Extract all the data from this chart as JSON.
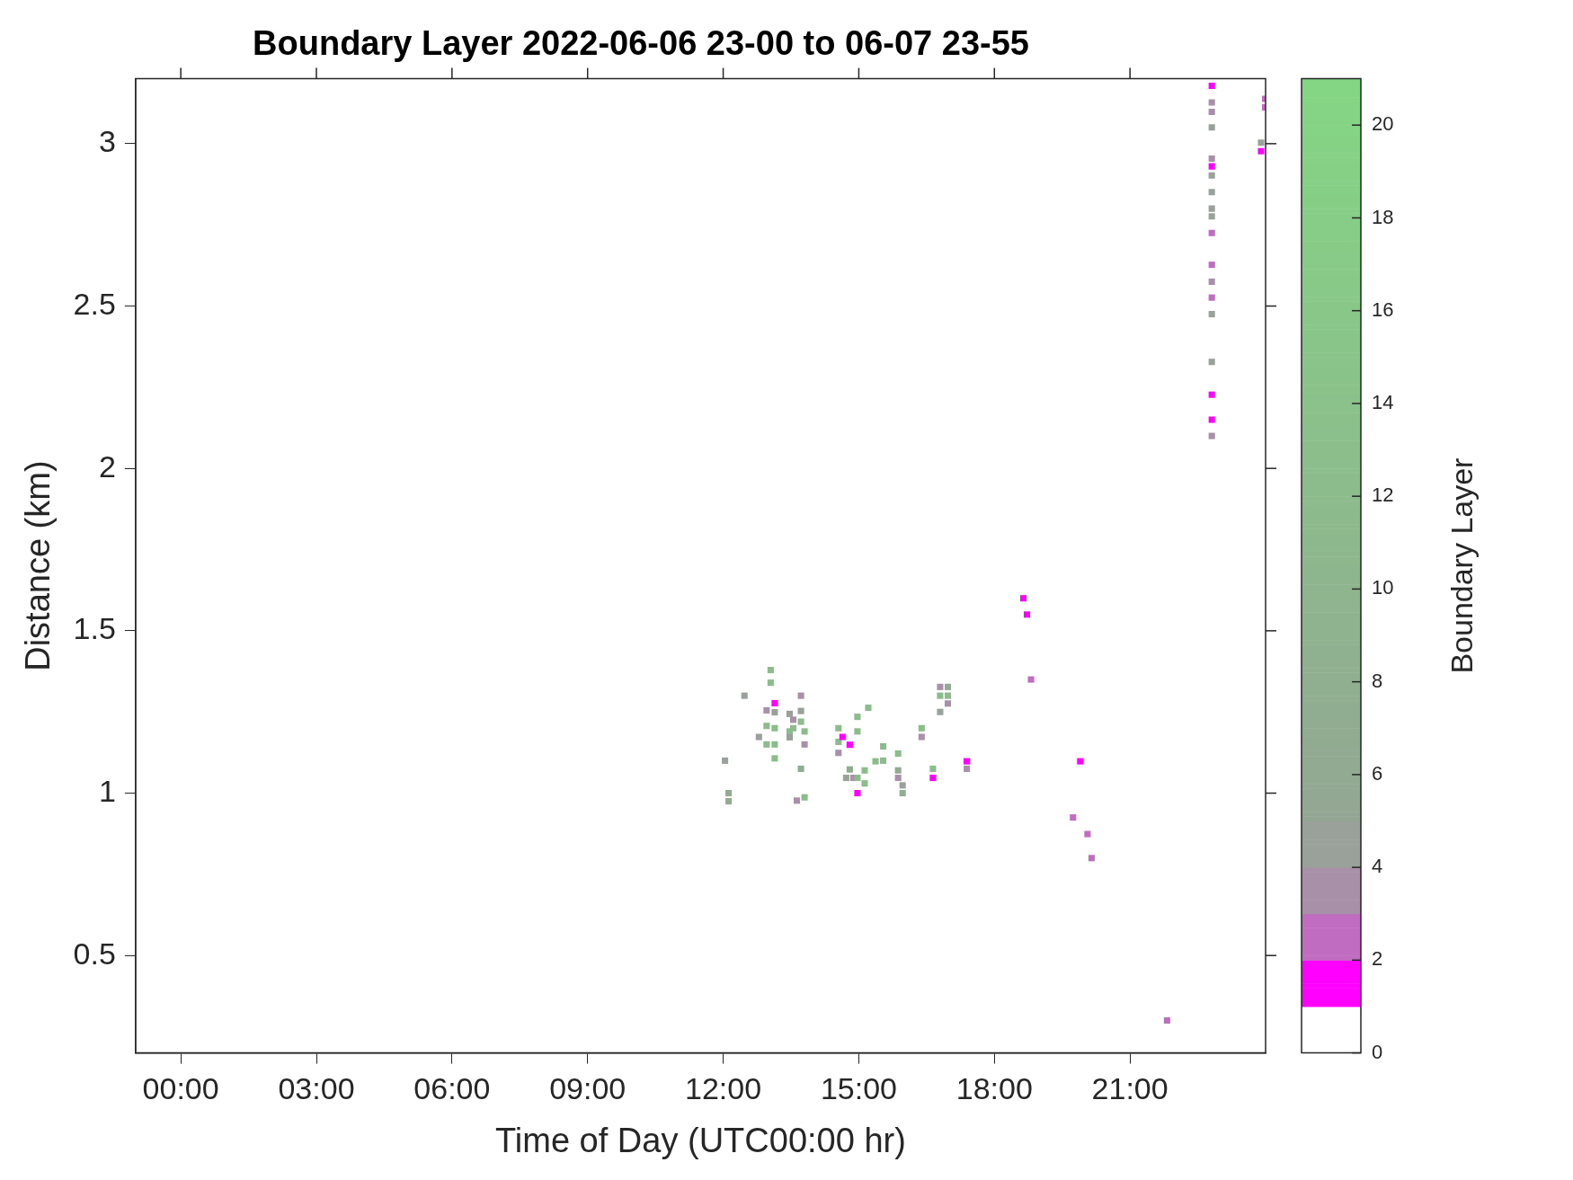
{
  "chart_data": {
    "type": "scatter",
    "title": "Boundary Layer 2022-06-06 23-00 to 06-07 23-55",
    "xlabel": "Time of Day (UTC00:00 hr)",
    "ylabel": "Distance (km)",
    "clabel": "Boundary Layer",
    "x": [
      12.04,
      12.12,
      12.12,
      12.47,
      12.79,
      13.05,
      13.05,
      12.96,
      12.96,
      12.96,
      13.14,
      13.14,
      13.14,
      13.14,
      13.14,
      13.47,
      13.47,
      13.47,
      13.55,
      13.55,
      13.63,
      13.72,
      13.72,
      13.72,
      13.72,
      13.8,
      13.8,
      13.8,
      14.55,
      14.55,
      14.55,
      14.64,
      14.8,
      14.72,
      14.8,
      14.88,
      14.97,
      14.97,
      14.97,
      14.97,
      15.13,
      15.13,
      15.21,
      15.37,
      15.54,
      15.54,
      15.87,
      15.87,
      15.87,
      15.97,
      15.97,
      16.39,
      16.39,
      16.64,
      16.64,
      16.8,
      16.8,
      16.8,
      16.97,
      16.97,
      16.97,
      17.39,
      17.39,
      18.64,
      18.72,
      18.81,
      19.9,
      19.74,
      20.06,
      20.15,
      21.82,
      22.81,
      22.81,
      22.81,
      22.81,
      22.81,
      22.81,
      22.81,
      22.81,
      22.81,
      22.81,
      22.81,
      22.81,
      22.81,
      22.81,
      22.81,
      22.81,
      22.81,
      22.81,
      22.81,
      23.99,
      23.99,
      23.9,
      23.9
    ],
    "values": [
      1.1,
      1.0,
      0.975,
      1.3,
      1.173,
      1.379,
      1.34,
      1.255,
      1.207,
      1.15,
      1.277,
      1.249,
      1.2,
      1.15,
      1.107,
      1.244,
      1.19,
      1.172,
      1.226,
      1.2,
      0.977,
      1.3,
      1.253,
      1.22,
      1.075,
      1.19,
      1.15,
      0.987,
      1.2,
      1.158,
      1.124,
      1.173,
      1.149,
      1.047,
      1.073,
      1.047,
      1.0,
      1.235,
      1.19,
      1.047,
      1.07,
      1.03,
      1.263,
      1.098,
      1.144,
      1.1,
      1.122,
      1.07,
      1.047,
      1.024,
      1.0,
      1.2,
      1.173,
      1.075,
      1.047,
      1.327,
      1.3,
      1.25,
      1.327,
      1.3,
      1.276,
      1.098,
      1.075,
      1.6,
      1.55,
      1.35,
      1.098,
      0.925,
      0.874,
      0.8,
      0.3,
      3.178,
      3.127,
      3.098,
      3.05,
      2.954,
      2.93,
      2.902,
      2.851,
      2.8,
      2.776,
      2.725,
      2.627,
      2.575,
      2.526,
      2.475,
      2.328,
      2.227,
      2.15,
      2.1,
      3.138,
      3.112,
      3.003,
      2.977
    ],
    "cvalues": [
      4.5,
      6,
      6,
      4.5,
      4.5,
      12,
      12,
      3.5,
      12,
      12,
      1.5,
      4.5,
      12,
      12,
      12,
      4.5,
      12,
      4.5,
      3.5,
      12,
      3.5,
      3.5,
      4.5,
      12,
      7,
      12,
      3.5,
      12,
      12,
      12,
      3.5,
      1.5,
      1.5,
      4.5,
      6,
      3.5,
      1.5,
      12,
      12,
      12,
      12,
      12,
      12,
      12,
      12,
      12,
      12,
      6,
      3.5,
      4.5,
      8,
      12,
      3.5,
      12,
      1.5,
      3.5,
      12,
      4.5,
      6,
      12,
      3.5,
      1.5,
      3.5,
      1.5,
      1.5,
      2.5,
      1.5,
      2.5,
      2.5,
      2.5,
      2.5,
      1.5,
      3.5,
      3.5,
      4.5,
      3.5,
      1.5,
      4.5,
      4.5,
      4.5,
      4.5,
      2.5,
      2.5,
      3.5,
      2.5,
      4.5,
      4.5,
      1.5,
      1.5,
      3.5,
      2.5,
      2.5,
      4.5,
      1.5
    ],
    "xlim": [
      -1,
      24
    ],
    "xticks": [
      {
        "value": 0,
        "label": "00:00"
      },
      {
        "value": 3,
        "label": "03:00"
      },
      {
        "value": 6,
        "label": "06:00"
      },
      {
        "value": 9,
        "label": "09:00"
      },
      {
        "value": 12,
        "label": "12:00"
      },
      {
        "value": 15,
        "label": "15:00"
      },
      {
        "value": 18,
        "label": "18:00"
      },
      {
        "value": 21,
        "label": "21:00"
      }
    ],
    "ylim": [
      0.2,
      3.2
    ],
    "yticks": [
      0.5,
      1,
      1.5,
      2,
      2.5,
      3
    ],
    "clim": [
      0,
      21
    ],
    "cticks": [
      0,
      2,
      4,
      6,
      8,
      10,
      12,
      14,
      16,
      18,
      20
    ],
    "marker": "square"
  }
}
